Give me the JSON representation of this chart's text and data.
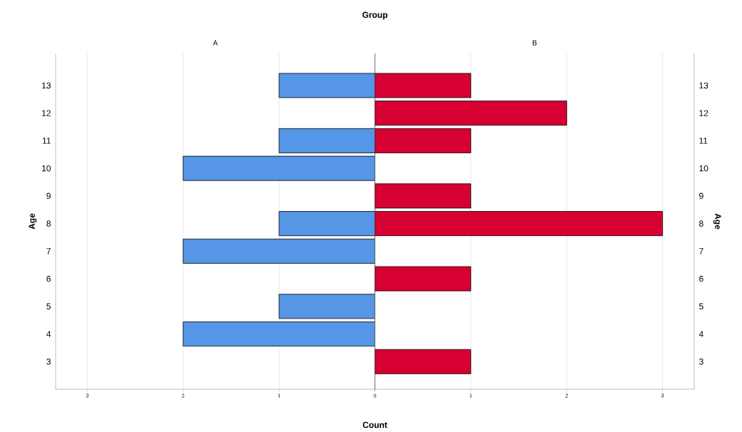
{
  "chart_data": [
    {
      "type": "bar",
      "orientation": "horizontal",
      "title": "Group",
      "subtitle": "A",
      "xlabel": "Count",
      "ylabel": "Age",
      "categories": [
        "13",
        "12",
        "11",
        "10",
        "9",
        "8",
        "7",
        "6",
        "5",
        "4",
        "3"
      ],
      "values": [
        1,
        null,
        1,
        2,
        null,
        1,
        2,
        null,
        1,
        2,
        null
      ],
      "color": "#5596e6",
      "xlim": [
        3.33,
        0
      ],
      "xticks": [
        3,
        2,
        1,
        0
      ],
      "grid": "x"
    },
    {
      "type": "bar",
      "orientation": "horizontal",
      "subtitle": "B",
      "ylabel": "Age",
      "categories": [
        "13",
        "12",
        "11",
        "10",
        "9",
        "8",
        "7",
        "6",
        "5",
        "4",
        "3"
      ],
      "values": [
        1,
        2,
        1,
        null,
        1,
        3,
        null,
        1,
        null,
        null,
        1
      ],
      "color": "#d70032",
      "xlim": [
        0,
        3.33
      ],
      "xticks": [
        {
          "value": 0,
          "label": null
        },
        1,
        2,
        3
      ],
      "grid": "x"
    }
  ]
}
